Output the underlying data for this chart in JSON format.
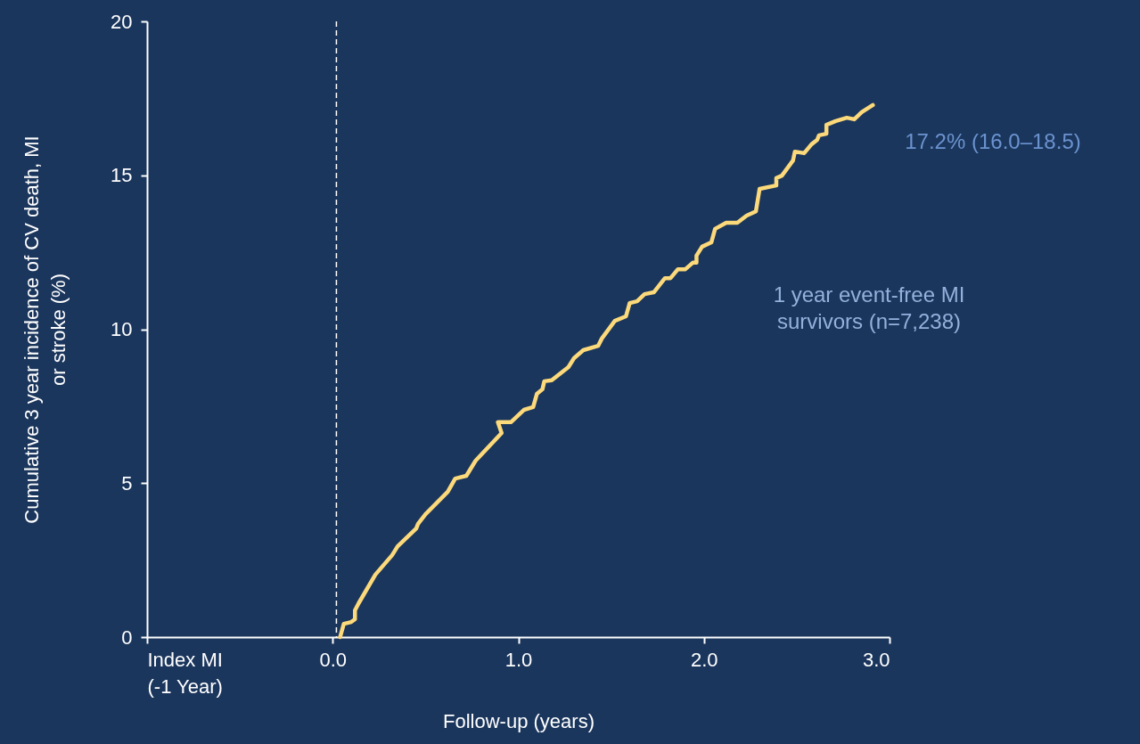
{
  "chart_data": {
    "type": "line",
    "xlabel": "Follow-up (years)",
    "ylabel": "Cumulative 3 year incidence of CV death, MI\nor stroke  (%)",
    "xlim": [
      -1,
      3
    ],
    "ylim": [
      0,
      20
    ],
    "xticks": [
      {
        "value": -1,
        "label": "Index MI\n(-1 Year)"
      },
      {
        "value": 0,
        "label": "0.0"
      },
      {
        "value": 1,
        "label": "1.0"
      },
      {
        "value": 2,
        "label": "2.0"
      },
      {
        "value": 3,
        "label": "3.0"
      }
    ],
    "yticks": [
      0,
      5,
      10,
      15,
      20
    ],
    "grid": false,
    "marker": "none",
    "line_style": "solid",
    "ref_lines": [
      {
        "axis": "x",
        "value": 0.02,
        "color": "#ffffff",
        "line_style": "dashed"
      }
    ],
    "annotations": [
      {
        "text": "17.2% (16.0–18.5)",
        "x": 2.91,
        "y": 17.28
      },
      "1 year event-free MI\nsurvivors (n=7,238)"
    ],
    "series": [
      {
        "color": "#fcd97a",
        "x": [
          0.04,
          0.06,
          0.1,
          0.12,
          0.12,
          0.14,
          0.23,
          0.32,
          0.35,
          0.45,
          0.46,
          0.5,
          0.62,
          0.66,
          0.72,
          0.77,
          0.91,
          0.89,
          0.96,
          1.03,
          1.08,
          1.1,
          1.13,
          1.14,
          1.18,
          1.27,
          1.3,
          1.35,
          1.43,
          1.45,
          1.52,
          1.58,
          1.6,
          1.64,
          1.68,
          1.73,
          1.79,
          1.82,
          1.86,
          1.9,
          1.94,
          1.96,
          1.96,
          1.99,
          2.04,
          2.06,
          2.12,
          2.18,
          2.23,
          2.28,
          2.3,
          2.39,
          2.39,
          2.42,
          2.48,
          2.49,
          2.54,
          2.58,
          2.61,
          2.62,
          2.66,
          2.66,
          2.71,
          2.77,
          2.81,
          2.85,
          2.91
        ],
        "values": [
          0,
          0.43,
          0.49,
          0.58,
          0.87,
          1.1,
          2.03,
          2.66,
          2.95,
          3.53,
          3.68,
          3.99,
          4.72,
          5.15,
          5.24,
          5.73,
          6.63,
          6.98,
          6.98,
          7.38,
          7.47,
          7.9,
          8.05,
          8.31,
          8.34,
          8.77,
          9.06,
          9.32,
          9.46,
          9.7,
          10.27,
          10.42,
          10.85,
          10.91,
          11.14,
          11.2,
          11.66,
          11.66,
          11.95,
          11.95,
          12.16,
          12.16,
          12.39,
          12.68,
          12.82,
          13.26,
          13.46,
          13.46,
          13.69,
          13.83,
          14.56,
          14.67,
          14.91,
          14.99,
          15.48,
          15.77,
          15.72,
          16.01,
          16.15,
          16.3,
          16.35,
          16.64,
          16.76,
          16.87,
          16.82,
          17.05,
          17.28
        ]
      }
    ]
  }
}
